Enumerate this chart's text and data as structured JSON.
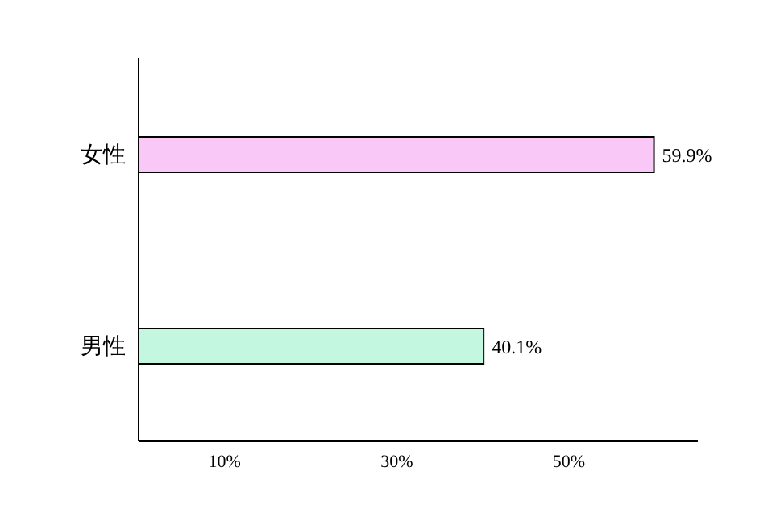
{
  "chart_data": {
    "type": "bar",
    "orientation": "horizontal",
    "categories": [
      "女性",
      "男性"
    ],
    "values": [
      59.9,
      40.1
    ],
    "colors": [
      "#f9c8f7",
      "#c4f7df"
    ],
    "value_labels": [
      "59.9%",
      "40.1%"
    ],
    "xlim": [
      0,
      65
    ],
    "xticks": [
      {
        "value": 10,
        "label": "10%"
      },
      {
        "value": 30,
        "label": "30%"
      },
      {
        "value": 50,
        "label": "50%"
      }
    ],
    "grid": false
  }
}
